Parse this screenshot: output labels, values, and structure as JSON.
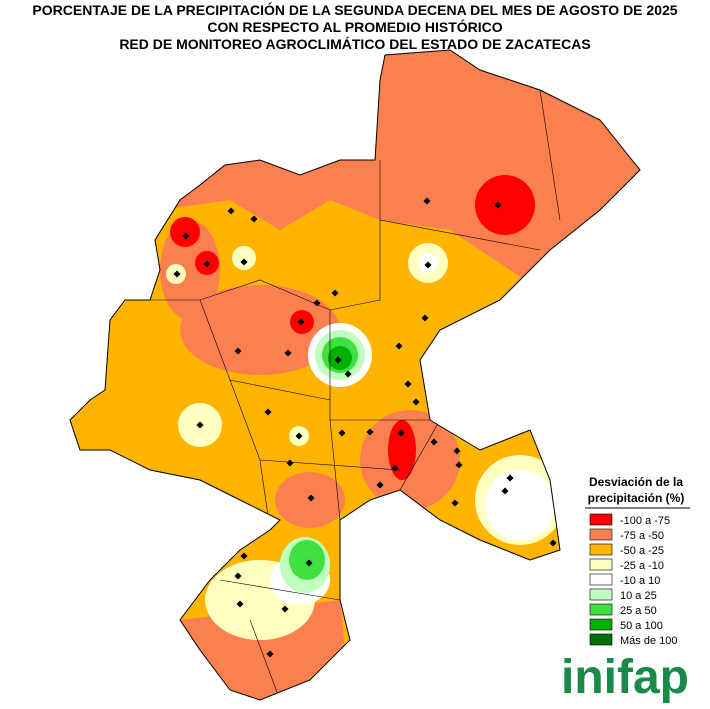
{
  "title_lines": [
    "PORCENTAJE DE LA PRECIPITACIÓN DE LA SEGUNDA DECENA DEL MES DE AGOSTO DE 2025",
    "CON RESPECTO AL PROMEDIO HISTÓRICO",
    "RED DE MONITOREO AGROCLIMÁTICO DEL ESTADO DE ZACATECAS"
  ],
  "legend": {
    "title_lines": [
      "Desviación de la",
      "precipitación (%)"
    ],
    "items": [
      {
        "label": "-100 a -75",
        "color": "#ff0000"
      },
      {
        "label": "-75 a -50",
        "color": "#fa8050"
      },
      {
        "label": "-50 a -25",
        "color": "#ffb400"
      },
      {
        "label": "-25 a -10",
        "color": "#ffffc0"
      },
      {
        "label": "-10 a 10",
        "color": "#ffffff"
      },
      {
        "label": "10 a 25",
        "color": "#c0ffc0"
      },
      {
        "label": "25 a 50",
        "color": "#40e040"
      },
      {
        "label": "50 a 100",
        "color": "#00b000"
      },
      {
        "label": "Más de 100",
        "color": "#007000"
      }
    ]
  },
  "logo": "inifap"
}
